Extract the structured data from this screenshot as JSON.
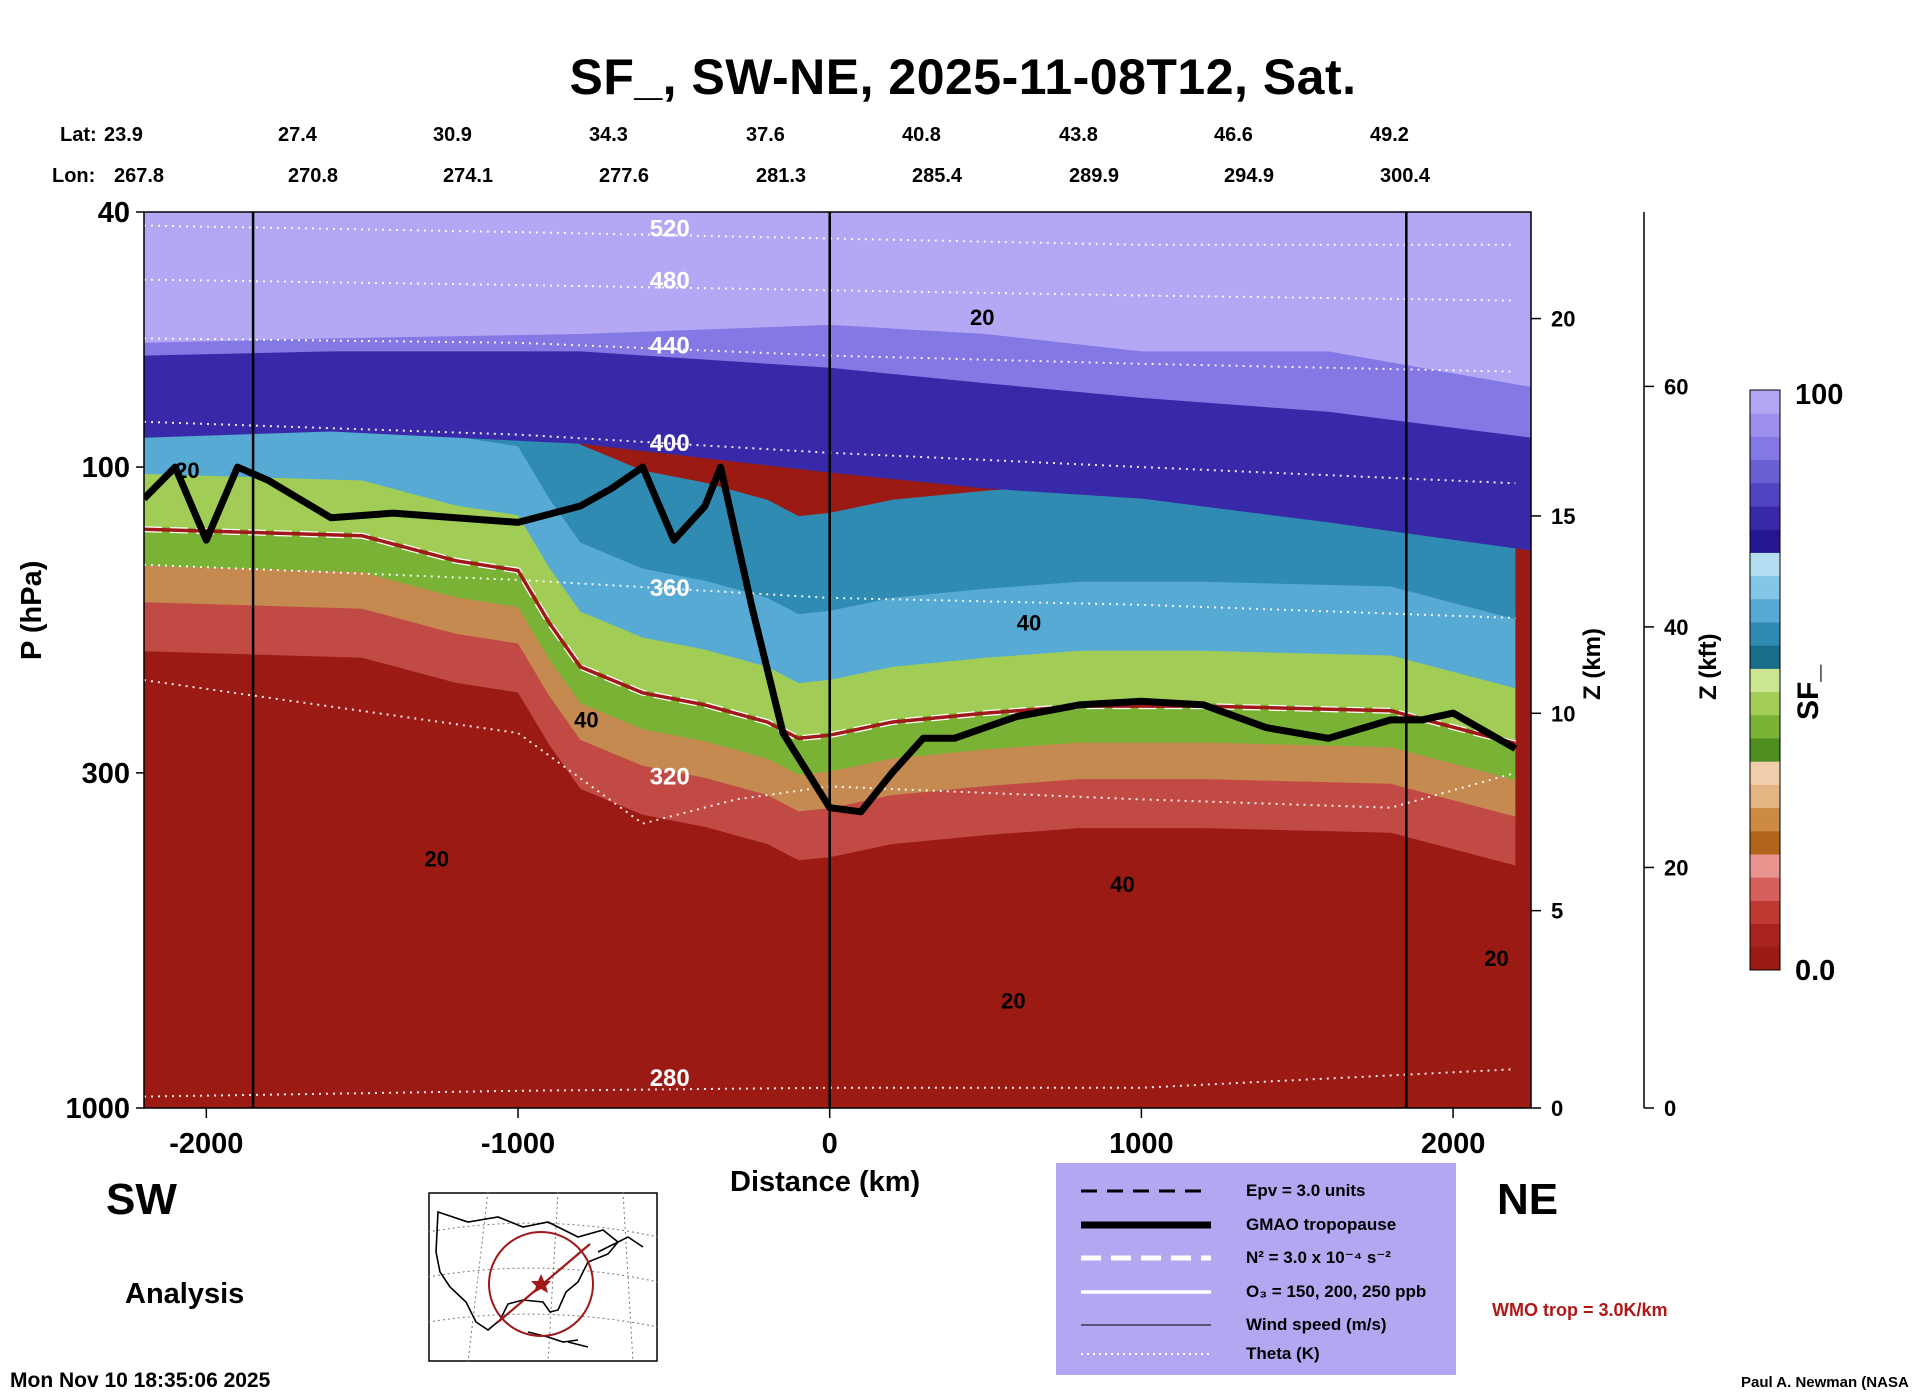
{
  "title": "SF_, SW-NE, 2025-11-08T12, Sat.",
  "lat_label": "Lat:",
  "lon_label": "Lon:",
  "lat_values": [
    "23.9",
    "27.4",
    "30.9",
    "34.3",
    "37.6",
    "40.8",
    "43.8",
    "46.6",
    "49.2"
  ],
  "lon_values": [
    "267.8",
    "270.8",
    "274.1",
    "277.6",
    "281.3",
    "285.4",
    "289.9",
    "294.9",
    "300.4"
  ],
  "left_direction": "SW",
  "right_direction": "NE",
  "analysis_label": "Analysis",
  "timestamp": "Mon Nov 10 18:35:06 2025",
  "credit": "Paul A. Newman (NASA",
  "wmo_note": "WMO trop = 3.0K/km",
  "legend": {
    "epv": "Epv = 3.0 units",
    "tropopause": "GMAO tropopause",
    "n2": "N² = 3.0 x 10⁻⁴ s⁻²",
    "o3": "O₃ = 150, 200, 250 ppb",
    "wind": "Wind speed (m/s)",
    "theta": "Theta (K)"
  },
  "colors": {
    "background_red": "#9b1a14",
    "stratosphere_purple": "#b4a8f4",
    "deep_blue": "#3c2fa8",
    "tropopause_line": "#a01818",
    "legend_box": "#b3a7f2"
  },
  "chart_data": {
    "type": "heatmap",
    "title": "SF_, SW-NE, 2025-11-08T12, Sat.",
    "xlabel": "Distance (km)",
    "ylabel": "P (hPa)",
    "y2label": "Z (km)",
    "y3label": "Z (kft)",
    "colorbar_label": "SF_",
    "xlim": [
      -2200,
      2250
    ],
    "ylim": [
      1000,
      40
    ],
    "yscale": "log",
    "x_ticks": [
      -2000,
      -1000,
      0,
      1000,
      2000
    ],
    "x_tick_labels": [
      "-2000",
      "-1000",
      "0",
      "1000",
      "2000"
    ],
    "y_ticks": [
      40,
      100,
      300,
      1000
    ],
    "y_tick_labels": [
      "40",
      "100",
      "300",
      "1000"
    ],
    "z_km_ticks": [
      0,
      5,
      10,
      15,
      20
    ],
    "z_km_tick_labels": [
      "0",
      "5",
      "10",
      "15",
      "20"
    ],
    "z_kft_ticks": [
      0,
      20,
      40,
      60
    ],
    "z_kft_tick_labels": [
      "0",
      "20",
      "40",
      "60"
    ],
    "colorbar_range": [
      0.0,
      100
    ],
    "colorbar_tick_labels": [
      "0.0",
      "100"
    ],
    "colorbar_colors": [
      "#9b1a14",
      "#a82220",
      "#c03a34",
      "#d6605c",
      "#e89590",
      "#b2651a",
      "#cc8a42",
      "#e4b482",
      "#f1ceab",
      "#4f8e20",
      "#79b235",
      "#a1cc55",
      "#cce590",
      "#196c8a",
      "#2f8bb2",
      "#56aad4",
      "#84c6e8",
      "#b3dcf1",
      "#24168e",
      "#3829a8",
      "#5044c0",
      "#6a60d4",
      "#8378e4",
      "#9d90ec",
      "#b4a8f4"
    ],
    "theta_labels": [
      "520",
      "480",
      "440",
      "400",
      "360",
      "320",
      "280"
    ],
    "wind_labels": [
      "20",
      "40"
    ],
    "theta_isentropes": [
      {
        "label": "520",
        "points": [
          [
            -2200,
            42
          ],
          [
            -1000,
            43
          ],
          [
            0,
            44
          ],
          [
            1000,
            45
          ],
          [
            2200,
            45
          ]
        ]
      },
      {
        "label": "480",
        "points": [
          [
            -2200,
            51
          ],
          [
            -1000,
            52
          ],
          [
            0,
            53
          ],
          [
            1000,
            54
          ],
          [
            2200,
            55
          ]
        ]
      },
      {
        "label": "440",
        "points": [
          [
            -2200,
            63
          ],
          [
            -1000,
            64
          ],
          [
            0,
            67
          ],
          [
            1000,
            69
          ],
          [
            2200,
            71
          ]
        ]
      },
      {
        "label": "400",
        "points": [
          [
            -2200,
            85
          ],
          [
            -1000,
            89
          ],
          [
            0,
            95
          ],
          [
            1000,
            100
          ],
          [
            2200,
            106
          ]
        ]
      },
      {
        "label": "360",
        "points": [
          [
            -2200,
            142
          ],
          [
            -1000,
            150
          ],
          [
            0,
            160
          ],
          [
            1000,
            164
          ],
          [
            2200,
            172
          ]
        ]
      },
      {
        "label": "320",
        "points": [
          [
            -2200,
            215
          ],
          [
            -1000,
            260
          ],
          [
            -600,
            360
          ],
          [
            -300,
            330
          ],
          [
            0,
            315
          ],
          [
            1000,
            330
          ],
          [
            1800,
            340
          ],
          [
            2200,
            300
          ]
        ]
      },
      {
        "label": "280",
        "points": [
          [
            -2200,
            960
          ],
          [
            -1000,
            940
          ],
          [
            0,
            930
          ],
          [
            1000,
            930
          ],
          [
            2200,
            870
          ]
        ]
      }
    ],
    "tropopause": [
      [
        -2200,
        112
      ],
      [
        -2100,
        100
      ],
      [
        -2000,
        130
      ],
      [
        -1900,
        100
      ],
      [
        -1800,
        105
      ],
      [
        -1600,
        120
      ],
      [
        -1400,
        118
      ],
      [
        -1000,
        122
      ],
      [
        -800,
        115
      ],
      [
        -700,
        108
      ],
      [
        -600,
        100
      ],
      [
        -500,
        130
      ],
      [
        -400,
        115
      ],
      [
        -350,
        100
      ],
      [
        -250,
        165
      ],
      [
        -150,
        260
      ],
      [
        0,
        340
      ],
      [
        100,
        345
      ],
      [
        200,
        300
      ],
      [
        300,
        265
      ],
      [
        400,
        265
      ],
      [
        600,
        245
      ],
      [
        800,
        235
      ],
      [
        1000,
        232
      ],
      [
        1200,
        235
      ],
      [
        1400,
        255
      ],
      [
        1600,
        265
      ],
      [
        1800,
        248
      ],
      [
        1900,
        248
      ],
      [
        2000,
        242
      ],
      [
        2200,
        275
      ]
    ],
    "wmo_tropopause": [
      [
        -2200,
        125
      ],
      [
        -1500,
        128
      ],
      [
        -1200,
        140
      ],
      [
        -1000,
        145
      ],
      [
        -900,
        175
      ],
      [
        -800,
        205
      ],
      [
        -600,
        225
      ],
      [
        -400,
        235
      ],
      [
        -200,
        250
      ],
      [
        -100,
        265
      ],
      [
        0,
        262
      ],
      [
        200,
        250
      ],
      [
        500,
        242
      ],
      [
        800,
        236
      ],
      [
        1200,
        236
      ],
      [
        1800,
        240
      ],
      [
        2200,
        270
      ]
    ]
  }
}
